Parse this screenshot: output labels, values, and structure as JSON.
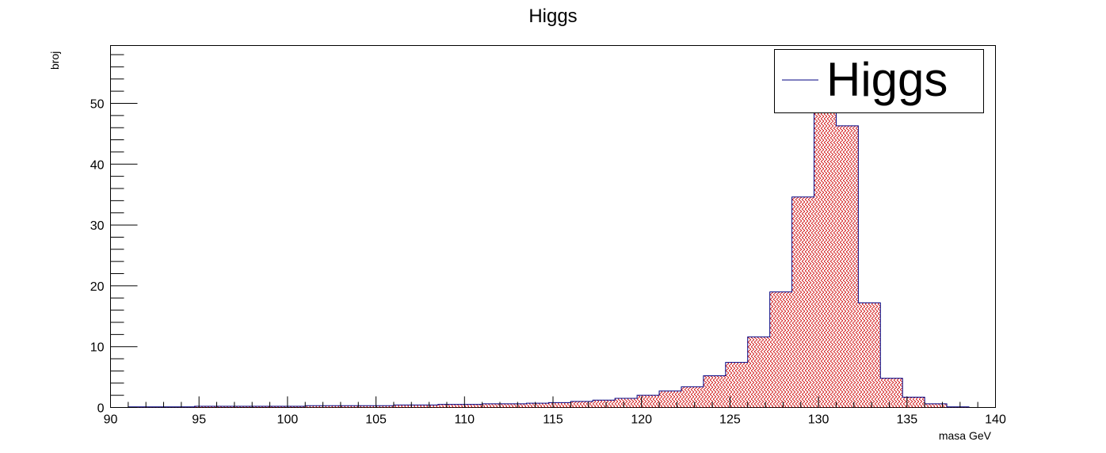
{
  "chart_data": {
    "type": "histogram",
    "title": "Higgs",
    "xlabel": "masa GeV",
    "ylabel": "broj",
    "xlim": [
      90,
      140
    ],
    "ylim": [
      0,
      59.5
    ],
    "bin_start": 91,
    "bin_width": 1.25,
    "values": [
      0.1,
      0.1,
      0.1,
      0.2,
      0.2,
      0.2,
      0.2,
      0.2,
      0.3,
      0.3,
      0.3,
      0.3,
      0.4,
      0.4,
      0.5,
      0.5,
      0.6,
      0.6,
      0.7,
      0.8,
      1.0,
      1.2,
      1.5,
      2.0,
      2.7,
      3.4,
      5.2,
      7.4,
      11.6,
      19.0,
      34.6,
      56.8,
      46.3,
      17.2,
      4.8,
      1.7,
      0.6,
      0.1
    ],
    "x_ticks": [
      "90",
      "95",
      "100",
      "105",
      "110",
      "115",
      "120",
      "125",
      "130",
      "135",
      "140"
    ],
    "y_ticks": [
      "0",
      "10",
      "20",
      "30",
      "40",
      "50"
    ],
    "legend": {
      "entries": [
        "Higgs"
      ],
      "position": "top-right"
    },
    "colors": {
      "line": "#000080",
      "fill_hatch": "#cc0000",
      "frame": "#000000"
    }
  }
}
